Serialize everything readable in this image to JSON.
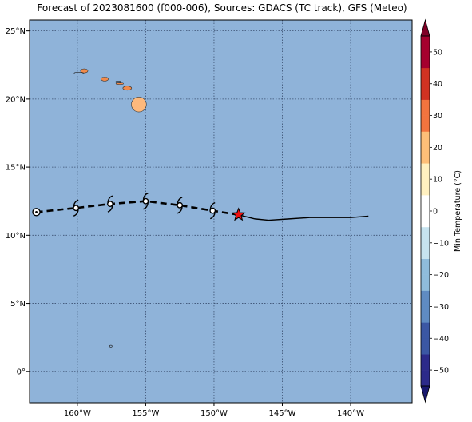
{
  "title": "Forecast of 2023081600 (f000-006), Sources: GDACS (TC track), GFS (Meteo)",
  "map": {
    "lon_range": [
      -163.5,
      -135.5
    ],
    "lat_range": [
      -2.3,
      25.8
    ],
    "ocean_color": "#8fb3d9",
    "grid": true,
    "lon_ticks": [
      {
        "value": -160,
        "label": "160°W"
      },
      {
        "value": -155,
        "label": "155°W"
      },
      {
        "value": -150,
        "label": "150°W"
      },
      {
        "value": -145,
        "label": "145°W"
      },
      {
        "value": -140,
        "label": "140°W"
      }
    ],
    "lat_ticks": [
      {
        "value": 25,
        "label": "25°N"
      },
      {
        "value": 20,
        "label": "20°N"
      },
      {
        "value": 15,
        "label": "15°N"
      },
      {
        "value": 10,
        "label": "10°N"
      },
      {
        "value": 5,
        "label": "5°N"
      },
      {
        "value": 0,
        "label": "0°"
      }
    ]
  },
  "track": {
    "forecast_points": [
      {
        "lon": -163.0,
        "lat": 11.7,
        "symbol": "circle-marker-icon"
      },
      {
        "lon": -160.1,
        "lat": 12.0,
        "symbol": "hurricane-symbol-icon"
      },
      {
        "lon": -157.6,
        "lat": 12.3,
        "symbol": "hurricane-symbol-icon"
      },
      {
        "lon": -155.0,
        "lat": 12.5,
        "symbol": "hurricane-symbol-icon"
      },
      {
        "lon": -152.5,
        "lat": 12.2,
        "symbol": "hurricane-symbol-icon"
      },
      {
        "lon": -150.1,
        "lat": 11.8,
        "symbol": "hurricane-symbol-icon"
      }
    ],
    "current_position": {
      "lon": -148.2,
      "lat": 11.5,
      "symbol": "star-icon",
      "color": "#ee1111"
    },
    "past_track": [
      {
        "lon": -148.2,
        "lat": 11.5
      },
      {
        "lon": -147.0,
        "lat": 11.2
      },
      {
        "lon": -146.0,
        "lat": 11.1
      },
      {
        "lon": -144.5,
        "lat": 11.2
      },
      {
        "lon": -143.0,
        "lat": 11.3
      },
      {
        "lon": -140.0,
        "lat": 11.3
      },
      {
        "lon": -138.7,
        "lat": 11.4
      }
    ]
  },
  "islands": [
    {
      "name": "",
      "color": "#f08a4b",
      "lon": -159.5,
      "lat": 22.07,
      "rx": 0.27,
      "ry": 0.15
    },
    {
      "name": "",
      "color": "#f08a4b",
      "lon": -158.0,
      "lat": 21.47,
      "rx": 0.27,
      "ry": 0.15
    },
    {
      "name": "",
      "color": "#f08a4b",
      "lon": -156.9,
      "lat": 21.13,
      "rx": 0.28,
      "ry": 0.06
    },
    {
      "name": "",
      "color": "#f08a4b",
      "lon": -156.35,
      "lat": 20.8,
      "rx": 0.32,
      "ry": 0.15
    },
    {
      "name": "",
      "color": "#fdb97d",
      "lon": -155.5,
      "lat": 19.6,
      "rx": 0.55,
      "ry": 0.55
    }
  ],
  "colorbar": {
    "title": "Min Temperature (°C)",
    "levels": [
      -55,
      -50,
      -45,
      -40,
      -35,
      -30,
      -25,
      -20,
      -15,
      -10,
      -5,
      0,
      5,
      10,
      15,
      20,
      25,
      30,
      35,
      40,
      45,
      50,
      55
    ],
    "colors": [
      "#2c2a8a",
      "#2c2a8a",
      "#3b57a4",
      "#3b57a4",
      "#5f8bc2",
      "#5f8bc2",
      "#8fbcdb",
      "#8fbcdb",
      "#c6e3ef",
      "#c6e3ef",
      "#ffffff",
      "#ffffff",
      "#fff0c0",
      "#fff0c0",
      "#fdbe78",
      "#fdbe78",
      "#f3743e",
      "#f3743e",
      "#d03222",
      "#d03222",
      "#a5002e",
      "#a5002e"
    ],
    "tick_values": [
      -50,
      -40,
      -30,
      -20,
      -10,
      0,
      10,
      20,
      30,
      40,
      50
    ],
    "tick_labels": [
      "−50",
      "−40",
      "−30",
      "−20",
      "−10",
      "0",
      "10",
      "20",
      "30",
      "40",
      "50"
    ],
    "extend": "both",
    "under_color": "#191970",
    "over_color": "#7f0026"
  }
}
